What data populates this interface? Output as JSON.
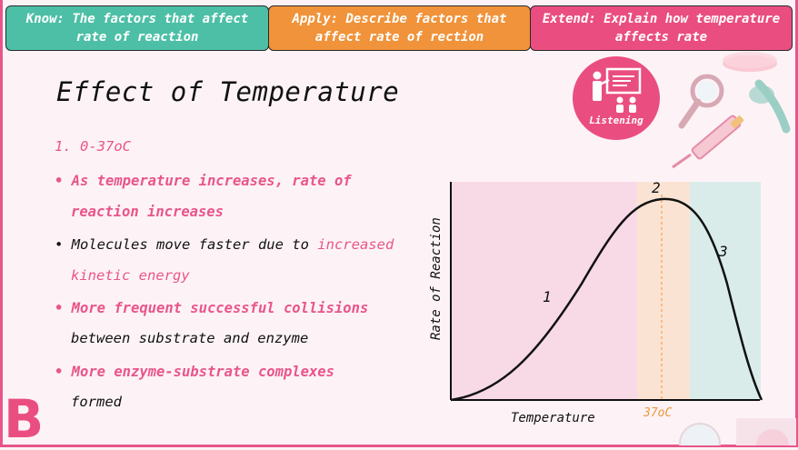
{
  "banners": {
    "know": "Know: The factors that affect rate of reaction",
    "apply": "Apply: Describe factors that affect rate of rection",
    "extend": "Extend: Explain how temperature affects rate"
  },
  "title": "Effect of Temperature",
  "badge": {
    "icon": "listening-presentation-icon",
    "label": "Listening"
  },
  "content": {
    "heading": "1. 0-37oC",
    "b1_l1": "• As temperature increases, rate of",
    "b1_l2": "reaction increases",
    "b2_l1_a": "• Molecules move faster due to ",
    "b2_l1_b": "increased",
    "b2_l2": "kinetic energy",
    "b3_l1": "• More frequent successful collisions",
    "b3_l2": "between substrate and enzyme",
    "b4_l1": "• More enzyme-substrate complexes",
    "b4_l2": "formed"
  },
  "colors": {
    "pink": "#e9558a",
    "teal": "#4dbfa6",
    "orange": "#f0933a",
    "zone1": "#f8d9e6",
    "zone2": "#fbe3d3",
    "zone3": "#d9ecea"
  },
  "chart_data": {
    "type": "line",
    "xlabel": "Temperature",
    "ylabel": "Rate of Reaction",
    "x_marker": "37oC",
    "zones": [
      {
        "label": "1",
        "color": "#e9558a"
      },
      {
        "label": "2",
        "color": "#f0933a"
      },
      {
        "label": "3",
        "color": "#4dbfa6"
      }
    ]
  },
  "logo": "B"
}
